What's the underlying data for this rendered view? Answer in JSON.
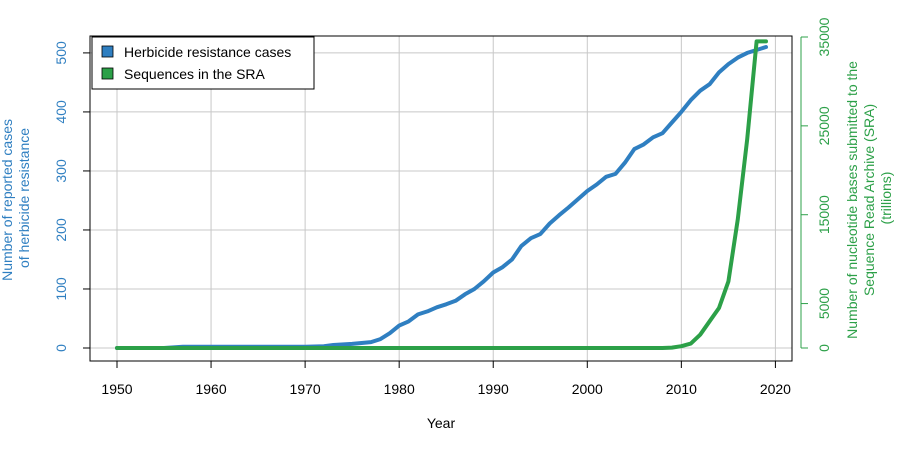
{
  "chart_data": {
    "type": "line",
    "xlabel": "Year",
    "ylabel_left": [
      "Number of reported cases",
      "of herbicide resistance"
    ],
    "ylabel_right": [
      "Number of nucleotide bases submitted to the",
      "Sequence Read Archive (SRA)",
      "(trillions)"
    ],
    "x_ticks": [
      "1950",
      "1960",
      "1970",
      "1980",
      "1990",
      "2000",
      "2010",
      "2020"
    ],
    "y_left_ticks": [
      "0",
      "100",
      "200",
      "300",
      "400",
      "500"
    ],
    "y_right_ticks": [
      "0",
      "5000",
      "15000",
      "25000",
      "35000"
    ],
    "xlim": [
      1950,
      2019
    ],
    "ylim_left": [
      0,
      510
    ],
    "ylim_right": [
      0,
      35000
    ],
    "grid": true,
    "legend_position": "top-left",
    "colors": {
      "left": "#2f7fc1",
      "right": "#2ca048"
    },
    "series": [
      {
        "name": "Herbicide resistance cases",
        "axis": "left",
        "color": "#2f7fc1",
        "x": [
          1950,
          1955,
          1957,
          1960,
          1965,
          1968,
          1970,
          1972,
          1973,
          1975,
          1977,
          1978,
          1979,
          1980,
          1981,
          1982,
          1983,
          1984,
          1985,
          1986,
          1987,
          1988,
          1989,
          1990,
          1991,
          1992,
          1993,
          1994,
          1995,
          1996,
          1997,
          1998,
          1999,
          2000,
          2001,
          2002,
          2003,
          2004,
          2005,
          2006,
          2007,
          2008,
          2009,
          2010,
          2011,
          2012,
          2013,
          2014,
          2015,
          2016,
          2017,
          2018,
          2019
        ],
        "values": [
          0,
          0,
          2,
          2,
          2,
          2,
          2,
          3,
          5,
          7,
          10,
          15,
          25,
          38,
          45,
          57,
          62,
          69,
          74,
          80,
          91,
          100,
          113,
          128,
          137,
          150,
          173,
          186,
          193,
          211,
          225,
          238,
          252,
          266,
          277,
          290,
          295,
          314,
          337,
          345,
          357,
          364,
          382,
          400,
          420,
          436,
          447,
          467,
          481,
          492,
          500,
          505,
          510
        ]
      },
      {
        "name": "Sequences in the SRA",
        "axis": "right",
        "color": "#2ca048",
        "x": [
          1950,
          1960,
          1970,
          1980,
          1990,
          2000,
          2008,
          2009,
          2010,
          2011,
          2012,
          2013,
          2014,
          2015,
          2016,
          2017,
          2018,
          2019
        ],
        "values": [
          0,
          0,
          0,
          0,
          0,
          0,
          0,
          50,
          200,
          500,
          1500,
          3000,
          4500,
          7500,
          14500,
          23500,
          34500,
          34500
        ]
      }
    ]
  }
}
